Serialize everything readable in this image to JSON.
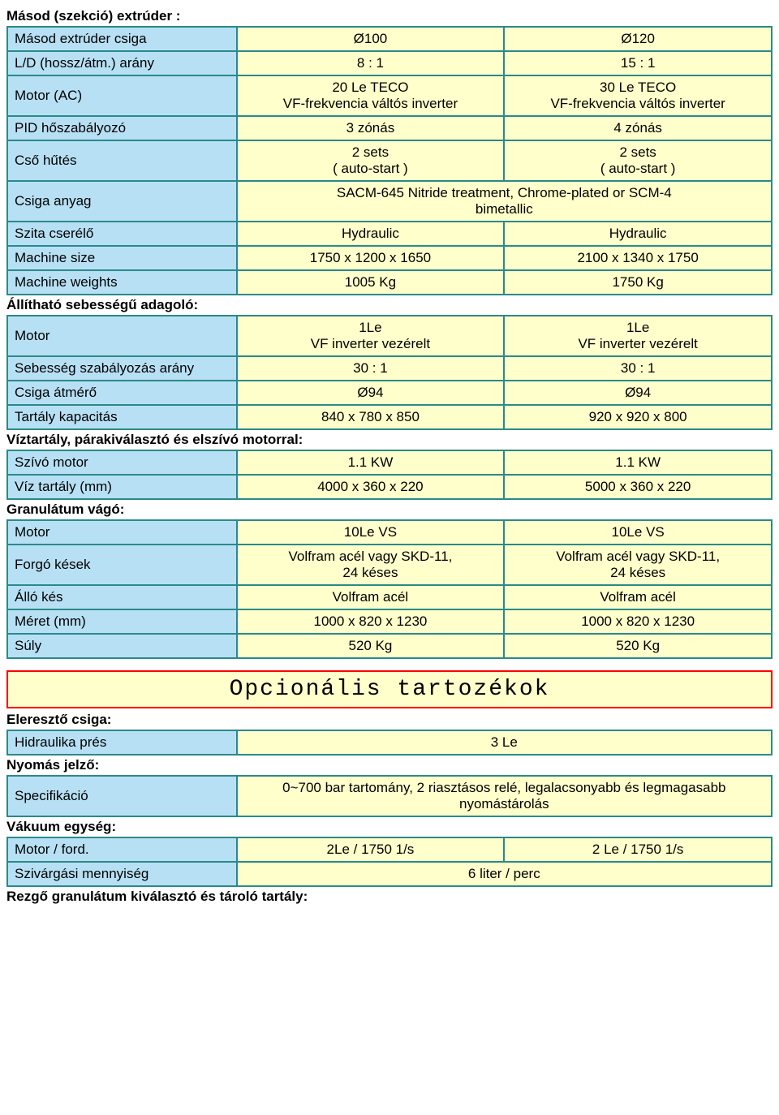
{
  "secondExtruder": {
    "title": "Másod (szekció) extrúder :",
    "rows": [
      {
        "label": "Másod extrúder csiga",
        "c1": "Ø100",
        "c2": "Ø120"
      },
      {
        "label": "L/D (hossz/átm.) arány",
        "c1": "8 : 1",
        "c2": "15 : 1"
      },
      {
        "label": "Motor (AC)",
        "c1": "20 Le  TECO\nVF-frekvencia váltós inverter",
        "c2": "30 Le  TECO\nVF-frekvencia váltós inverter"
      },
      {
        "label": "PID hőszabályozó",
        "c1": "3 zónás",
        "c2": "4 zónás"
      },
      {
        "label": "Cső hűtés",
        "c1": "2 sets\n( auto-start )",
        "c2": "2 sets\n( auto-start )"
      },
      {
        "label": "Csiga anyag",
        "span": "SACM-645 Nitride treatment, Chrome-plated or SCM-4\nbimetallic"
      },
      {
        "label": "Szita cserélő",
        "c1": "Hydraulic",
        "c2": "Hydraulic"
      },
      {
        "label": "Machine size",
        "c1": "1750 x 1200 x 1650",
        "c2": "2100 x 1340 x 1750"
      },
      {
        "label": "Machine weights",
        "c1": "1005 Kg",
        "c2": "1750 Kg"
      }
    ]
  },
  "feeder": {
    "title": "Állítható sebességű adagoló:",
    "rows": [
      {
        "label": "Motor",
        "c1": "1Le\nVF inverter vezérelt",
        "c2": "1Le\nVF inverter vezérelt"
      },
      {
        "label": "Sebesség szabályozás arány",
        "c1": "30 : 1",
        "c2": "30 : 1"
      },
      {
        "label": "Csiga átmérő",
        "c1": "Ø94",
        "c2": "Ø94"
      },
      {
        "label": "Tartály kapacitás",
        "c1": "840 x 780 x 850",
        "c2": "920 x 920 x 800"
      }
    ]
  },
  "waterTank": {
    "title": "Víztartály, párakiválasztó és elszívó motorral:",
    "rows": [
      {
        "label": "Szívó motor",
        "c1": "1.1 KW",
        "c2": "1.1 KW"
      },
      {
        "label": "Víz tartály (mm)",
        "c1": "4000 x 360 x 220",
        "c2": "5000 x 360 x 220"
      }
    ]
  },
  "cutter": {
    "title": "Granulátum vágó:",
    "rows": [
      {
        "label": "Motor",
        "c1": "10Le VS",
        "c2": "10Le VS"
      },
      {
        "label": "Forgó kések",
        "c1": "Volfram acél vagy SKD-11,\n24 késes",
        "c2": "Volfram acél vagy SKD-11,\n24 késes"
      },
      {
        "label": "Álló kés",
        "c1": "Volfram acél",
        "c2": "Volfram acél"
      },
      {
        "label": "Méret (mm)",
        "c1": "1000 x 820 x 1230",
        "c2": "1000 x 820 x 1230"
      },
      {
        "label": "Súly",
        "c1": "520 Kg",
        "c2": "520 Kg"
      }
    ]
  },
  "optHeader": "Opcionális tartozékok",
  "release": {
    "title": "Eleresztő csiga:",
    "rows": [
      {
        "label": "Hidraulika prés",
        "span": "3 Le"
      }
    ]
  },
  "pressure": {
    "title": "Nyomás jelző:",
    "rows": [
      {
        "label": "Specifikáció",
        "span": "0~700 bar tartomány, 2 riasztásos relé, legalacsonyabb és legmagasabb nyomástárolás"
      }
    ]
  },
  "vacuum": {
    "title": "Vákuum egység:",
    "rows": [
      {
        "label": "Motor / ford.",
        "c1": "2Le / 1750 1/s",
        "c2": "2 Le / 1750 1/s"
      },
      {
        "label": "Szivárgási mennyiség",
        "span": "6 liter / perc"
      }
    ]
  },
  "vibro": {
    "title": "Rezgő granulátum kiválasztó és tároló tartály:"
  }
}
